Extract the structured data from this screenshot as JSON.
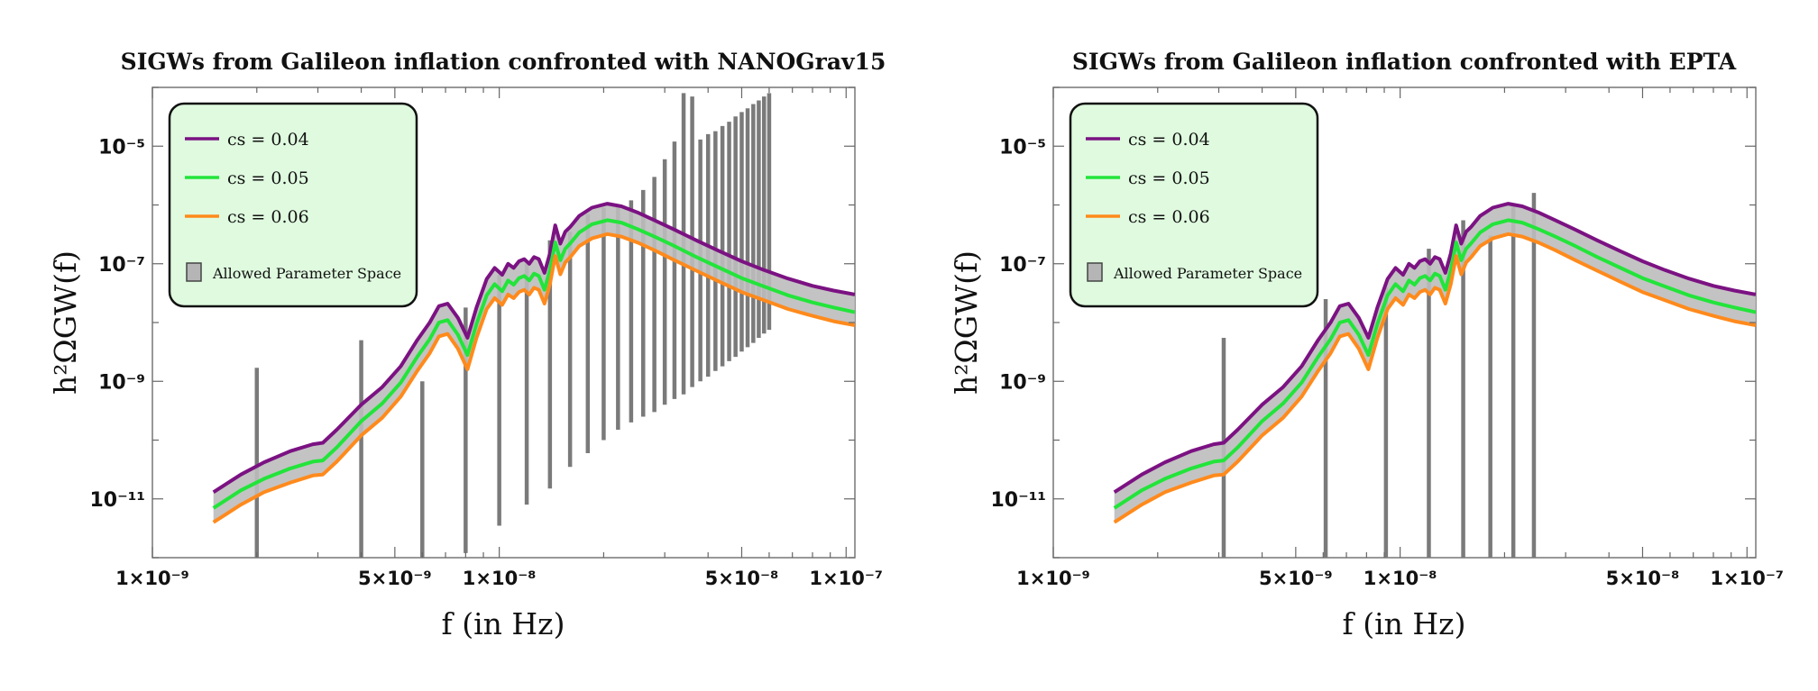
{
  "figure": {
    "panels": 2
  },
  "chart_data": [
    {
      "type": "line",
      "title": "SIGWs from Galileon inflation confronted with NANOGrav15",
      "xlabel": "f (in Hz)",
      "ylabel": "h²ΩGW(f)",
      "xscale": "log",
      "yscale": "log",
      "xlim": [
        1e-09,
        1.06e-07
      ],
      "ylim": [
        1e-12,
        0.0001
      ],
      "xticks": [
        {
          "value": 1e-09,
          "label": "1×10⁻⁹"
        },
        {
          "value": 5e-09,
          "label": "5×10⁻⁹"
        },
        {
          "value": 1e-08,
          "label": "1×10⁻⁸"
        },
        {
          "value": 5e-08,
          "label": "5×10⁻⁸"
        },
        {
          "value": 1e-07,
          "label": "1×10⁻⁷"
        }
      ],
      "yticks": [
        {
          "value": 1e-11,
          "label": "10⁻¹¹"
        },
        {
          "value": 1e-09,
          "label": "10⁻⁹"
        },
        {
          "value": 1e-07,
          "label": "10⁻⁷"
        },
        {
          "value": 1e-05,
          "label": "10⁻⁵"
        }
      ],
      "legend": {
        "position": "top-left",
        "entries": [
          {
            "label": "cs = 0.04",
            "color": "#7b1282"
          },
          {
            "label": "cs = 0.05",
            "color": "#22e43a"
          },
          {
            "label": "cs = 0.06",
            "color": "#ff8a1c"
          }
        ],
        "band_label": "Allowed Parameter Space"
      },
      "series": [
        {
          "name": "cs = 0.04",
          "color": "#7b1282",
          "x": [
            1.5e-09,
            1.8e-09,
            2.1e-09,
            2.5e-09,
            2.9e-09,
            3.1e-09,
            3.4e-09,
            4e-09,
            4.6e-09,
            5.2e-09,
            5.8e-09,
            6.3e-09,
            6.7e-09,
            7.1e-09,
            7.6e-09,
            8.1e-09,
            8.6e-09,
            9.2e-09,
            9.7e-09,
            1.02e-08,
            1.06e-08,
            1.1e-08,
            1.14e-08,
            1.18e-08,
            1.22e-08,
            1.26e-08,
            1.3e-08,
            1.35e-08,
            1.4e-08,
            1.45e-08,
            1.5e-08,
            1.55e-08,
            1.6e-08,
            1.7e-08,
            1.85e-08,
            2.05e-08,
            2.25e-08,
            2.5e-08,
            2.8e-08,
            3.2e-08,
            3.7e-08,
            4.3e-08,
            5e-08,
            5.8e-08,
            6.8e-08,
            8e-08,
            9.2e-08,
            1.06e-07
          ],
          "values": [
            1.3e-11,
            2.6e-11,
            4.2e-11,
            6.5e-11,
            8.5e-11,
            9e-11,
            1.5e-10,
            4e-10,
            8e-10,
            1.8e-09,
            5e-09,
            1e-08,
            1.9e-08,
            2.1e-08,
            1.2e-08,
            5.5e-09,
            1.8e-08,
            5.5e-08,
            8.5e-08,
            6.5e-08,
            1e-07,
            8.5e-08,
            1.1e-07,
            1.2e-07,
            1e-07,
            1.3e-07,
            1.2e-07,
            7e-08,
            1.5e-07,
            4.5e-07,
            2.2e-07,
            3.5e-07,
            4.2e-07,
            6.5e-07,
            9e-07,
            1.05e-06,
            9.5e-07,
            7.5e-07,
            5.5e-07,
            3.8e-07,
            2.5e-07,
            1.65e-07,
            1.1e-07,
            7.8e-08,
            5.6e-08,
            4.2e-08,
            3.5e-08,
            3e-08
          ]
        },
        {
          "name": "cs = 0.05",
          "color": "#22e43a",
          "x": [
            1.5e-09,
            1.8e-09,
            2.1e-09,
            2.5e-09,
            2.9e-09,
            3.1e-09,
            3.4e-09,
            4e-09,
            4.6e-09,
            5.2e-09,
            5.8e-09,
            6.3e-09,
            6.7e-09,
            7.1e-09,
            7.6e-09,
            8.1e-09,
            8.6e-09,
            9.2e-09,
            9.7e-09,
            1.02e-08,
            1.06e-08,
            1.1e-08,
            1.14e-08,
            1.18e-08,
            1.22e-08,
            1.26e-08,
            1.3e-08,
            1.35e-08,
            1.4e-08,
            1.45e-08,
            1.5e-08,
            1.55e-08,
            1.6e-08,
            1.7e-08,
            1.85e-08,
            2.05e-08,
            2.25e-08,
            2.5e-08,
            2.8e-08,
            3.2e-08,
            3.7e-08,
            4.3e-08,
            5e-08,
            5.8e-08,
            6.8e-08,
            8e-08,
            9.2e-08,
            1.06e-07
          ],
          "values": [
            7e-12,
            1.4e-11,
            2.2e-11,
            3.3e-11,
            4.3e-11,
            4.5e-11,
            7.5e-11,
            2.1e-10,
            4.2e-10,
            9.5e-10,
            2.6e-09,
            5.2e-09,
            1e-08,
            1.1e-08,
            6.2e-09,
            2.8e-09,
            9.5e-09,
            2.9e-08,
            4.5e-08,
            3.4e-08,
            5.2e-08,
            4.4e-08,
            5.7e-08,
            6.2e-08,
            5.2e-08,
            6.8e-08,
            6.2e-08,
            3.6e-08,
            7.8e-08,
            2.3e-07,
            1.15e-07,
            1.8e-07,
            2.2e-07,
            3.4e-07,
            4.7e-07,
            5.5e-07,
            5e-07,
            3.9e-07,
            2.9e-07,
            2e-07,
            1.3e-07,
            8.6e-08,
            5.7e-08,
            4.1e-08,
            2.9e-08,
            2.2e-08,
            1.8e-08,
            1.5e-08
          ]
        },
        {
          "name": "cs = 0.06",
          "color": "#ff8a1c",
          "x": [
            1.5e-09,
            1.8e-09,
            2.1e-09,
            2.5e-09,
            2.9e-09,
            3.1e-09,
            3.4e-09,
            4e-09,
            4.6e-09,
            5.2e-09,
            5.8e-09,
            6.3e-09,
            6.7e-09,
            7.1e-09,
            7.6e-09,
            8.1e-09,
            8.6e-09,
            9.2e-09,
            9.7e-09,
            1.02e-08,
            1.06e-08,
            1.1e-08,
            1.14e-08,
            1.18e-08,
            1.22e-08,
            1.26e-08,
            1.3e-08,
            1.35e-08,
            1.4e-08,
            1.45e-08,
            1.5e-08,
            1.55e-08,
            1.6e-08,
            1.7e-08,
            1.85e-08,
            2.05e-08,
            2.25e-08,
            2.5e-08,
            2.8e-08,
            3.2e-08,
            3.7e-08,
            4.3e-08,
            5e-08,
            5.8e-08,
            6.8e-08,
            8e-08,
            9.2e-08,
            1.06e-07
          ],
          "values": [
            4e-12,
            8e-12,
            1.3e-11,
            1.9e-11,
            2.5e-11,
            2.6e-11,
            4.3e-11,
            1.2e-10,
            2.4e-10,
            5.5e-10,
            1.5e-09,
            3e-09,
            5.8e-09,
            6.4e-09,
            3.6e-09,
            1.6e-09,
            5.5e-09,
            1.7e-08,
            2.6e-08,
            2e-08,
            3e-08,
            2.6e-08,
            3.3e-08,
            3.6e-08,
            3e-08,
            3.9e-08,
            3.6e-08,
            2.1e-08,
            4.5e-08,
            1.35e-07,
            6.6e-08,
            1.05e-07,
            1.28e-07,
            2e-07,
            2.7e-07,
            3.2e-07,
            2.9e-07,
            2.3e-07,
            1.7e-07,
            1.15e-07,
            7.6e-08,
            5e-08,
            3.3e-08,
            2.4e-08,
            1.7e-08,
            1.3e-08,
            1.05e-08,
            9e-09
          ]
        }
      ],
      "allowed_bins": [
        {
          "f": 2e-09,
          "low": 1e-12,
          "high": 1.7e-09
        },
        {
          "f": 4e-09,
          "low": 1e-12,
          "high": 5e-09
        },
        {
          "f": 6e-09,
          "low": 1e-12,
          "high": 1e-09
        },
        {
          "f": 8e-09,
          "low": 1.2e-12,
          "high": 1.8e-08
        },
        {
          "f": 1e-08,
          "low": 3.5e-12,
          "high": 6.5e-08
        },
        {
          "f": 1.2e-08,
          "low": 8e-12,
          "high": 1e-07
        },
        {
          "f": 1.4e-08,
          "low": 1.5e-11,
          "high": 2.5e-07
        },
        {
          "f": 1.6e-08,
          "low": 3.5e-11,
          "high": 3.5e-07
        },
        {
          "f": 1.8e-08,
          "low": 6e-11,
          "high": 7e-07
        },
        {
          "f": 2e-08,
          "low": 1e-10,
          "high": 9e-07
        },
        {
          "f": 2.2e-08,
          "low": 1.5e-10,
          "high": 1e-06
        },
        {
          "f": 2.4e-08,
          "low": 2e-10,
          "high": 1.2e-06
        },
        {
          "f": 2.6e-08,
          "low": 2.5e-10,
          "high": 1.8e-06
        },
        {
          "f": 2.8e-08,
          "low": 3e-10,
          "high": 3e-06
        },
        {
          "f": 3e-08,
          "low": 4e-10,
          "high": 6e-06
        },
        {
          "f": 3.2e-08,
          "low": 5e-10,
          "high": 1.2e-05
        },
        {
          "f": 3.4e-08,
          "low": 6e-10,
          "high": 8e-05
        },
        {
          "f": 3.6e-08,
          "low": 8e-10,
          "high": 7e-05
        },
        {
          "f": 3.8e-08,
          "low": 1e-09,
          "high": 1.3e-05
        },
        {
          "f": 4e-08,
          "low": 1.2e-09,
          "high": 1.6e-05
        },
        {
          "f": 4.2e-08,
          "low": 1.5e-09,
          "high": 1.8e-05
        },
        {
          "f": 4.4e-08,
          "low": 1.8e-09,
          "high": 2.2e-05
        },
        {
          "f": 4.6e-08,
          "low": 2.2e-09,
          "high": 2.6e-05
        },
        {
          "f": 4.8e-08,
          "low": 2.6e-09,
          "high": 3.2e-05
        },
        {
          "f": 5e-08,
          "low": 3.2e-09,
          "high": 3.8e-05
        },
        {
          "f": 5.2e-08,
          "low": 3.8e-09,
          "high": 4.4e-05
        },
        {
          "f": 5.4e-08,
          "low": 4.5e-09,
          "high": 5.2e-05
        },
        {
          "f": 5.6e-08,
          "low": 5.5e-09,
          "high": 6e-05
        },
        {
          "f": 5.8e-08,
          "low": 6.5e-09,
          "high": 7e-05
        },
        {
          "f": 6e-08,
          "low": 7.5e-09,
          "high": 8e-05
        }
      ]
    },
    {
      "type": "line",
      "title": "SIGWs from Galileon inflation confronted with EPTA",
      "xlabel": "f (in Hz)",
      "ylabel": "h²ΩGW(f)",
      "xscale": "log",
      "yscale": "log",
      "xlim": [
        1e-09,
        1.06e-07
      ],
      "ylim": [
        1e-12,
        0.0001
      ],
      "xticks": [
        {
          "value": 1e-09,
          "label": "1×10⁻⁹"
        },
        {
          "value": 5e-09,
          "label": "5×10⁻⁹"
        },
        {
          "value": 1e-08,
          "label": "1×10⁻⁸"
        },
        {
          "value": 5e-08,
          "label": "5×10⁻⁸"
        },
        {
          "value": 1e-07,
          "label": "1×10⁻⁷"
        }
      ],
      "yticks": [
        {
          "value": 1e-11,
          "label": "10⁻¹¹"
        },
        {
          "value": 1e-09,
          "label": "10⁻⁹"
        },
        {
          "value": 1e-07,
          "label": "10⁻⁷"
        },
        {
          "value": 1e-05,
          "label": "10⁻⁵"
        }
      ],
      "legend": {
        "position": "top-left",
        "entries": [
          {
            "label": "cs = 0.04",
            "color": "#7b1282"
          },
          {
            "label": "cs = 0.05",
            "color": "#22e43a"
          },
          {
            "label": "cs = 0.06",
            "color": "#ff8a1c"
          }
        ],
        "band_label": "Allowed Parameter Space"
      },
      "series": [
        {
          "name": "cs = 0.04",
          "color": "#7b1282",
          "x": [
            1.5e-09,
            1.8e-09,
            2.1e-09,
            2.5e-09,
            2.9e-09,
            3.1e-09,
            3.4e-09,
            4e-09,
            4.6e-09,
            5.2e-09,
            5.8e-09,
            6.3e-09,
            6.7e-09,
            7.1e-09,
            7.6e-09,
            8.1e-09,
            8.6e-09,
            9.2e-09,
            9.7e-09,
            1.02e-08,
            1.06e-08,
            1.1e-08,
            1.14e-08,
            1.18e-08,
            1.22e-08,
            1.26e-08,
            1.3e-08,
            1.35e-08,
            1.4e-08,
            1.45e-08,
            1.5e-08,
            1.55e-08,
            1.6e-08,
            1.7e-08,
            1.85e-08,
            2.05e-08,
            2.25e-08,
            2.5e-08,
            2.8e-08,
            3.2e-08,
            3.7e-08,
            4.3e-08,
            5e-08,
            5.8e-08,
            6.8e-08,
            8e-08,
            9.2e-08,
            1.06e-07
          ],
          "values": [
            1.3e-11,
            2.6e-11,
            4.2e-11,
            6.5e-11,
            8.5e-11,
            9e-11,
            1.5e-10,
            4e-10,
            8e-10,
            1.8e-09,
            5e-09,
            1e-08,
            1.9e-08,
            2.1e-08,
            1.2e-08,
            5.5e-09,
            1.8e-08,
            5.5e-08,
            8.5e-08,
            6.5e-08,
            1e-07,
            8.5e-08,
            1.1e-07,
            1.2e-07,
            1e-07,
            1.3e-07,
            1.2e-07,
            7e-08,
            1.5e-07,
            4.5e-07,
            2.2e-07,
            3.5e-07,
            4.2e-07,
            6.5e-07,
            9e-07,
            1.05e-06,
            9.5e-07,
            7.5e-07,
            5.5e-07,
            3.8e-07,
            2.5e-07,
            1.65e-07,
            1.1e-07,
            7.8e-08,
            5.6e-08,
            4.2e-08,
            3.5e-08,
            3e-08
          ]
        },
        {
          "name": "cs = 0.05",
          "color": "#22e43a",
          "x": [
            1.5e-09,
            1.8e-09,
            2.1e-09,
            2.5e-09,
            2.9e-09,
            3.1e-09,
            3.4e-09,
            4e-09,
            4.6e-09,
            5.2e-09,
            5.8e-09,
            6.3e-09,
            6.7e-09,
            7.1e-09,
            7.6e-09,
            8.1e-09,
            8.6e-09,
            9.2e-09,
            9.7e-09,
            1.02e-08,
            1.06e-08,
            1.1e-08,
            1.14e-08,
            1.18e-08,
            1.22e-08,
            1.26e-08,
            1.3e-08,
            1.35e-08,
            1.4e-08,
            1.45e-08,
            1.5e-08,
            1.55e-08,
            1.6e-08,
            1.7e-08,
            1.85e-08,
            2.05e-08,
            2.25e-08,
            2.5e-08,
            2.8e-08,
            3.2e-08,
            3.7e-08,
            4.3e-08,
            5e-08,
            5.8e-08,
            6.8e-08,
            8e-08,
            9.2e-08,
            1.06e-07
          ],
          "values": [
            7e-12,
            1.4e-11,
            2.2e-11,
            3.3e-11,
            4.3e-11,
            4.5e-11,
            7.5e-11,
            2.1e-10,
            4.2e-10,
            9.5e-10,
            2.6e-09,
            5.2e-09,
            1e-08,
            1.1e-08,
            6.2e-09,
            2.8e-09,
            9.5e-09,
            2.9e-08,
            4.5e-08,
            3.4e-08,
            5.2e-08,
            4.4e-08,
            5.7e-08,
            6.2e-08,
            5.2e-08,
            6.8e-08,
            6.2e-08,
            3.6e-08,
            7.8e-08,
            2.3e-07,
            1.15e-07,
            1.8e-07,
            2.2e-07,
            3.4e-07,
            4.7e-07,
            5.5e-07,
            5e-07,
            3.9e-07,
            2.9e-07,
            2e-07,
            1.3e-07,
            8.6e-08,
            5.7e-08,
            4.1e-08,
            2.9e-08,
            2.2e-08,
            1.8e-08,
            1.5e-08
          ]
        },
        {
          "name": "cs = 0.06",
          "color": "#ff8a1c",
          "x": [
            1.5e-09,
            1.8e-09,
            2.1e-09,
            2.5e-09,
            2.9e-09,
            3.1e-09,
            3.4e-09,
            4e-09,
            4.6e-09,
            5.2e-09,
            5.8e-09,
            6.3e-09,
            6.7e-09,
            7.1e-09,
            7.6e-09,
            8.1e-09,
            8.6e-09,
            9.2e-09,
            9.7e-09,
            1.02e-08,
            1.06e-08,
            1.1e-08,
            1.14e-08,
            1.18e-08,
            1.22e-08,
            1.26e-08,
            1.3e-08,
            1.35e-08,
            1.4e-08,
            1.45e-08,
            1.5e-08,
            1.55e-08,
            1.6e-08,
            1.7e-08,
            1.85e-08,
            2.05e-08,
            2.25e-08,
            2.5e-08,
            2.8e-08,
            3.2e-08,
            3.7e-08,
            4.3e-08,
            5e-08,
            5.8e-08,
            6.8e-08,
            8e-08,
            9.2e-08,
            1.06e-07
          ],
          "values": [
            4e-12,
            8e-12,
            1.3e-11,
            1.9e-11,
            2.5e-11,
            2.6e-11,
            4.3e-11,
            1.2e-10,
            2.4e-10,
            5.5e-10,
            1.5e-09,
            3e-09,
            5.8e-09,
            6.4e-09,
            3.6e-09,
            1.6e-09,
            5.5e-09,
            1.7e-08,
            2.6e-08,
            2e-08,
            3e-08,
            2.6e-08,
            3.3e-08,
            3.6e-08,
            3e-08,
            3.9e-08,
            3.6e-08,
            2.1e-08,
            4.5e-08,
            1.35e-07,
            6.6e-08,
            1.05e-07,
            1.28e-07,
            2e-07,
            2.7e-07,
            3.2e-07,
            2.9e-07,
            2.3e-07,
            1.7e-07,
            1.15e-07,
            7.6e-08,
            5e-08,
            3.3e-08,
            2.4e-08,
            1.7e-08,
            1.3e-08,
            1.05e-08,
            9e-09
          ]
        }
      ],
      "allowed_bins": [
        {
          "f": 3.1e-09,
          "low": 1e-12,
          "high": 5.5e-09
        },
        {
          "f": 6.1e-09,
          "low": 1e-12,
          "high": 2.5e-08
        },
        {
          "f": 9.1e-09,
          "low": 1e-12,
          "high": 4e-08
        },
        {
          "f": 1.21e-08,
          "low": 1e-12,
          "high": 1.8e-07
        },
        {
          "f": 1.52e-08,
          "low": 1e-12,
          "high": 5.5e-07
        },
        {
          "f": 1.82e-08,
          "low": 1e-12,
          "high": 3e-07
        },
        {
          "f": 2.12e-08,
          "low": 1e-12,
          "high": 1e-06
        },
        {
          "f": 2.43e-08,
          "low": 1e-12,
          "high": 1.6e-06
        }
      ]
    }
  ]
}
